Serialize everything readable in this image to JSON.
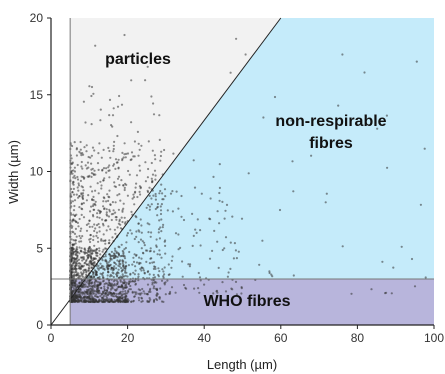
{
  "chart_data": {
    "type": "scatter",
    "title": "",
    "xlabel": "Length (µm)",
    "ylabel": "Width (µm)",
    "xlim": [
      0,
      100
    ],
    "ylim": [
      0,
      20
    ],
    "x_ticks": [
      "0",
      "20",
      "40",
      "60",
      "80",
      "100"
    ],
    "y_ticks": [
      "0",
      "5",
      "10",
      "15",
      "20"
    ],
    "grid": false,
    "reference_lines": {
      "length_cutoff": 5,
      "width_cutoff": 3,
      "aspect_ratio_line": {
        "x": [
          0,
          60
        ],
        "y": [
          0,
          20
        ]
      }
    },
    "regions": [
      {
        "name": "particles",
        "label": "particles",
        "color": "#f2f2f2"
      },
      {
        "name": "non-respirable-fibres",
        "label_line1": "non-respirable",
        "label_line2": "fibres",
        "color": "#c5ebfa"
      },
      {
        "name": "who-fibres",
        "label": "WHO fibres",
        "color": "#b8b5dc"
      }
    ],
    "point_color": "#333333",
    "series": [
      {
        "clusters": [
          {
            "x_range": [
              5,
              30
            ],
            "y_range": [
              1.5,
              12
            ],
            "count": 900
          },
          {
            "x_range": [
              5,
              20
            ],
            "y_range": [
              1.5,
              5
            ],
            "count": 700
          },
          {
            "x_range": [
              10,
              50
            ],
            "y_range": [
              2,
              9
            ],
            "count": 250
          },
          {
            "x_range": [
              10,
              99
            ],
            "y_range": [
              2,
              19
            ],
            "count": 120
          },
          {
            "x_range": [
              5,
              30
            ],
            "y_range": [
              10,
              16.5
            ],
            "count": 25
          }
        ]
      }
    ]
  }
}
